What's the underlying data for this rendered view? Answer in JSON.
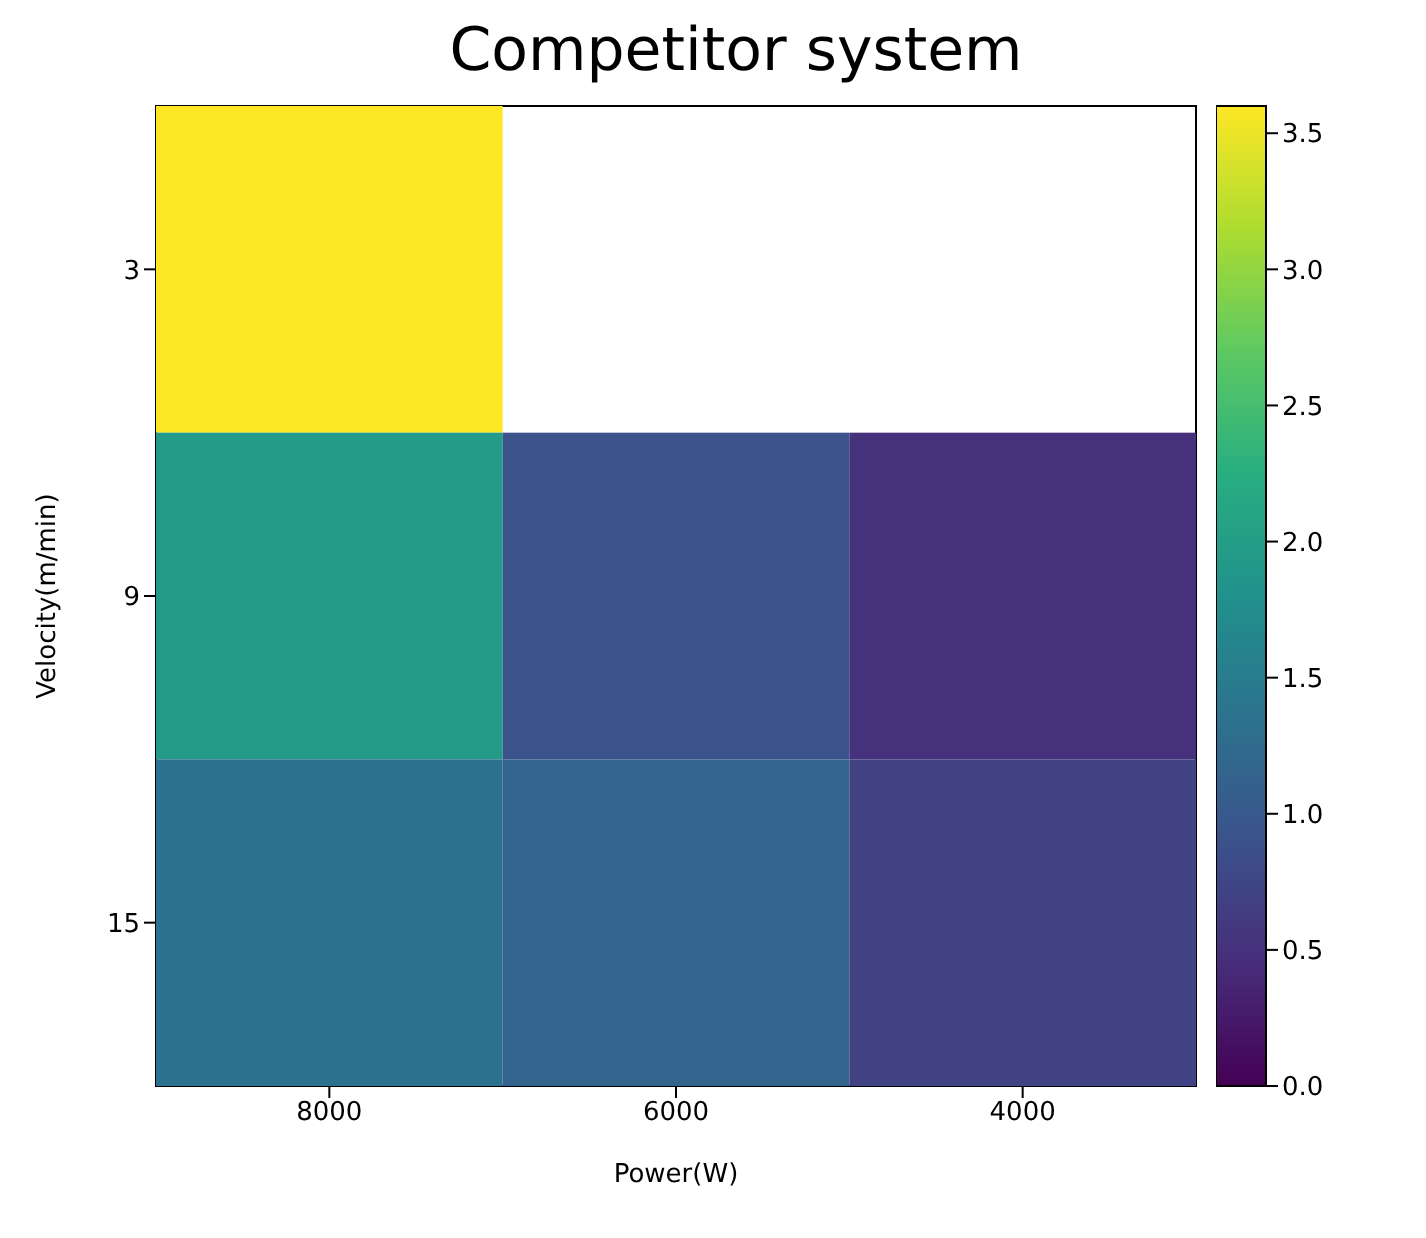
{
  "chart_data": {
    "type": "heatmap",
    "title": "Competitor system",
    "xlabel": "Power(W)",
    "ylabel": "Velocity(m/min)",
    "categories": [
      "8000",
      "6000",
      "4000"
    ],
    "y_categories": [
      "3",
      "9",
      "15"
    ],
    "cells": [
      [
        3.6,
        null,
        null
      ],
      [
        1.95,
        0.9,
        0.5
      ],
      [
        1.35,
        1.15,
        0.7
      ]
    ],
    "clim": [
      0,
      3.6
    ],
    "cticks": [
      {
        "value": 0,
        "label": "0.0"
      },
      {
        "value": 0.5,
        "label": "0.5"
      },
      {
        "value": 1,
        "label": "1.0"
      },
      {
        "value": 1.5,
        "label": "1.5"
      },
      {
        "value": 2,
        "label": "2.0"
      },
      {
        "value": 2.5,
        "label": "2.5"
      },
      {
        "value": 3,
        "label": "3.0"
      },
      {
        "value": 3.5,
        "label": "3.5"
      }
    ]
  }
}
